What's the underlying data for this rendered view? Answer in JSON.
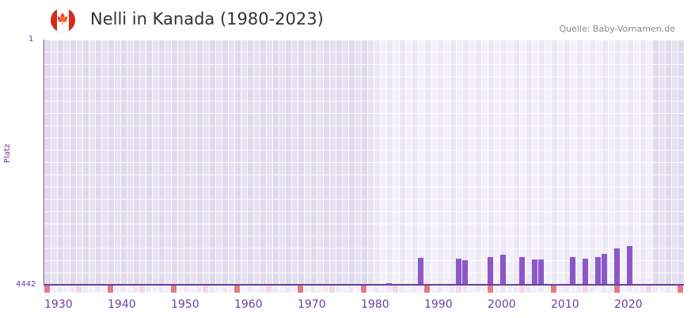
{
  "header": {
    "title": "Nelli in Kanada (1980-2023)",
    "source": "Quelle: Baby-Vornamen.de",
    "flag_icon": "canada-flag-icon"
  },
  "colors": {
    "bar": "#8b57c9",
    "axis": "#6a3fa0",
    "decade_marker": "#e57a80",
    "half_decade_marker": "#f5d8df",
    "bg_out_of_range": "#e3dfee",
    "bg_in_range": "#efecf8"
  },
  "chart_data": {
    "type": "bar",
    "title": "Nelli in Kanada (1980-2023)",
    "xlabel": "",
    "ylabel": "Platz",
    "y_inverted": true,
    "ylim": [
      4442,
      1
    ],
    "y_ticks": [
      "1",
      "4442"
    ],
    "x_range": [
      1928,
      2028
    ],
    "x_ticks": [
      "1930",
      "1940",
      "1950",
      "1960",
      "1970",
      "1980",
      "1990",
      "2000",
      "2010",
      "2020"
    ],
    "data_range": [
      1980,
      2023
    ],
    "x": [
      1982,
      1987,
      1993,
      1994,
      1998,
      2000,
      2003,
      2005,
      2006,
      2011,
      2013,
      2015,
      2016,
      2018,
      2020
    ],
    "values": [
      4842,
      3957,
      3972,
      3997,
      3944,
      3900,
      3943,
      3987,
      3987,
      3943,
      3973,
      3943,
      3877,
      3778,
      3734
    ],
    "grid": true,
    "legend": null
  },
  "axis": {
    "y_top": "1",
    "y_bottom": "4442",
    "y_title": "Platz"
  }
}
